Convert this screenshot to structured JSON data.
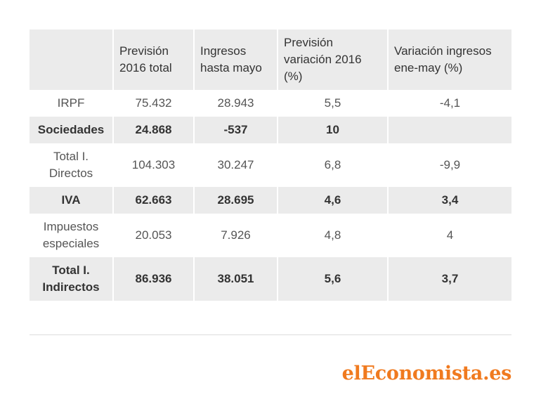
{
  "table": {
    "headers": [
      [
        ""
      ],
      [
        "Previsión",
        "2016 total"
      ],
      [
        "Ingresos",
        "hasta mayo"
      ],
      [
        "Previsión",
        "variación 2016",
        "(%)"
      ],
      [
        "Variación ingresos",
        "ene-may (%)"
      ]
    ],
    "rows": [
      {
        "concept": [
          "IRPF"
        ],
        "prevision": "75.432",
        "ingresos": "28.943",
        "variacion_prev": "5,5",
        "variacion_ing": "-4,1"
      },
      {
        "concept": [
          "Sociedades"
        ],
        "prevision": "24.868",
        "ingresos": "-537",
        "variacion_prev": "10",
        "variacion_ing": ""
      },
      {
        "concept": [
          "Total I.",
          "Directos"
        ],
        "prevision": "104.303",
        "ingresos": "30.247",
        "variacion_prev": "6,8",
        "variacion_ing": "-9,9"
      },
      {
        "concept": [
          "IVA"
        ],
        "prevision": "62.663",
        "ingresos": "28.695",
        "variacion_prev": "4,6",
        "variacion_ing": "3,4"
      },
      {
        "concept": [
          "Impuestos",
          "especiales"
        ],
        "prevision": "20.053",
        "ingresos": "7.926",
        "variacion_prev": "4,8",
        "variacion_ing": "4"
      },
      {
        "concept": [
          "Total I.",
          "Indirectos"
        ],
        "prevision": "86.936",
        "ingresos": "38.051",
        "variacion_prev": "5,6",
        "variacion_ing": "3,7"
      }
    ]
  },
  "logo": {
    "text_pre": "el",
    "text_e": "E",
    "text_post": "conomista.es"
  },
  "colors": {
    "header_bg": "#ebebeb",
    "row_dark_bg": "#ebebeb",
    "row_light_bg": "#ffffff",
    "text": "#333333",
    "brand": "#f07a1f"
  }
}
